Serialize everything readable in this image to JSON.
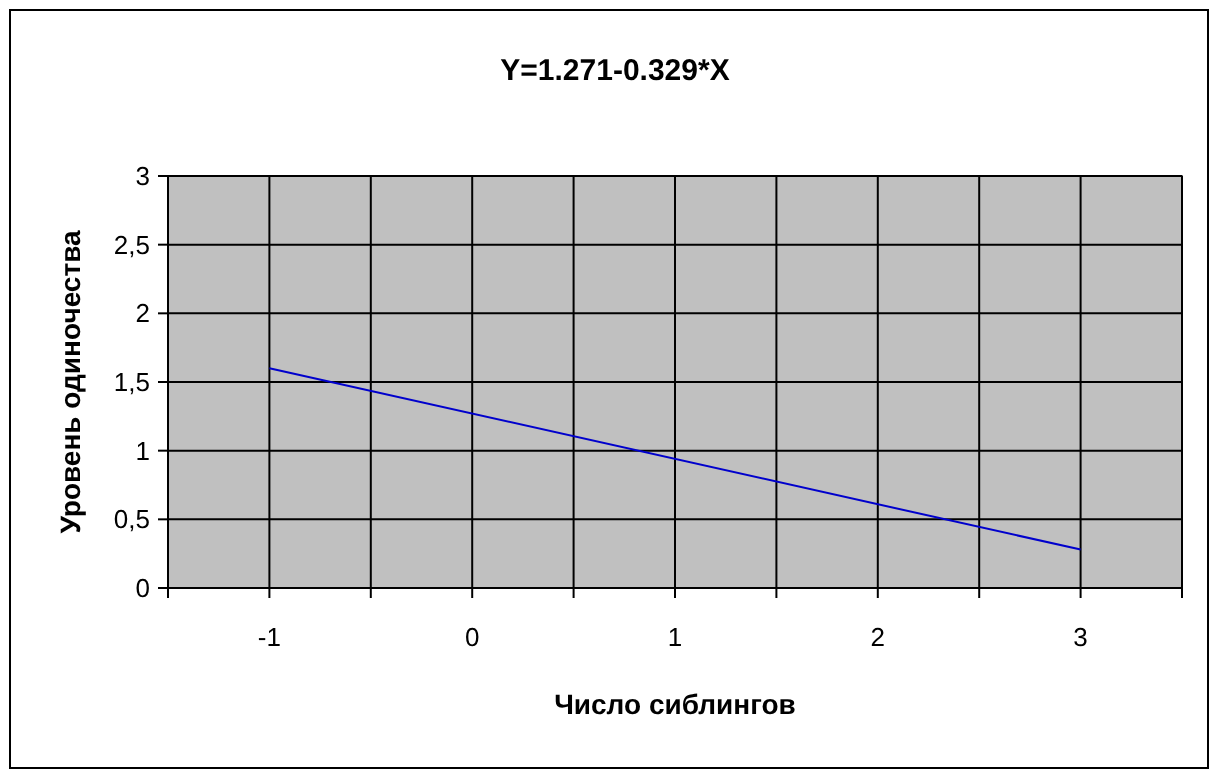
{
  "chart_data": {
    "type": "line",
    "title": "Y=1.271-0.329*X",
    "xlabel": "Число сиблингов",
    "ylabel": "Уровень одиночества",
    "x": [
      -1,
      3
    ],
    "series": [
      {
        "color": "#0000cc",
        "values": [
          1.6,
          0.28
        ]
      }
    ],
    "xlim": [
      -1.5,
      3.5
    ],
    "xticks": [
      {
        "value": -1.5,
        "label": null
      },
      -1,
      {
        "value": -0.5,
        "label": null
      },
      0,
      {
        "value": 0.5,
        "label": null
      },
      1,
      {
        "value": 1.5,
        "label": null
      },
      2,
      {
        "value": 2.5,
        "label": null
      },
      3,
      {
        "value": 3.5,
        "label": null
      }
    ],
    "ylim": [
      0,
      3
    ],
    "yticks": [
      0,
      {
        "value": 0.5,
        "label": "0,5"
      },
      1,
      {
        "value": 1.5,
        "label": "1,5"
      },
      2,
      {
        "value": 2.5,
        "label": "2,5"
      },
      3
    ],
    "grid": true,
    "marker": "none",
    "line_style": "solid"
  }
}
